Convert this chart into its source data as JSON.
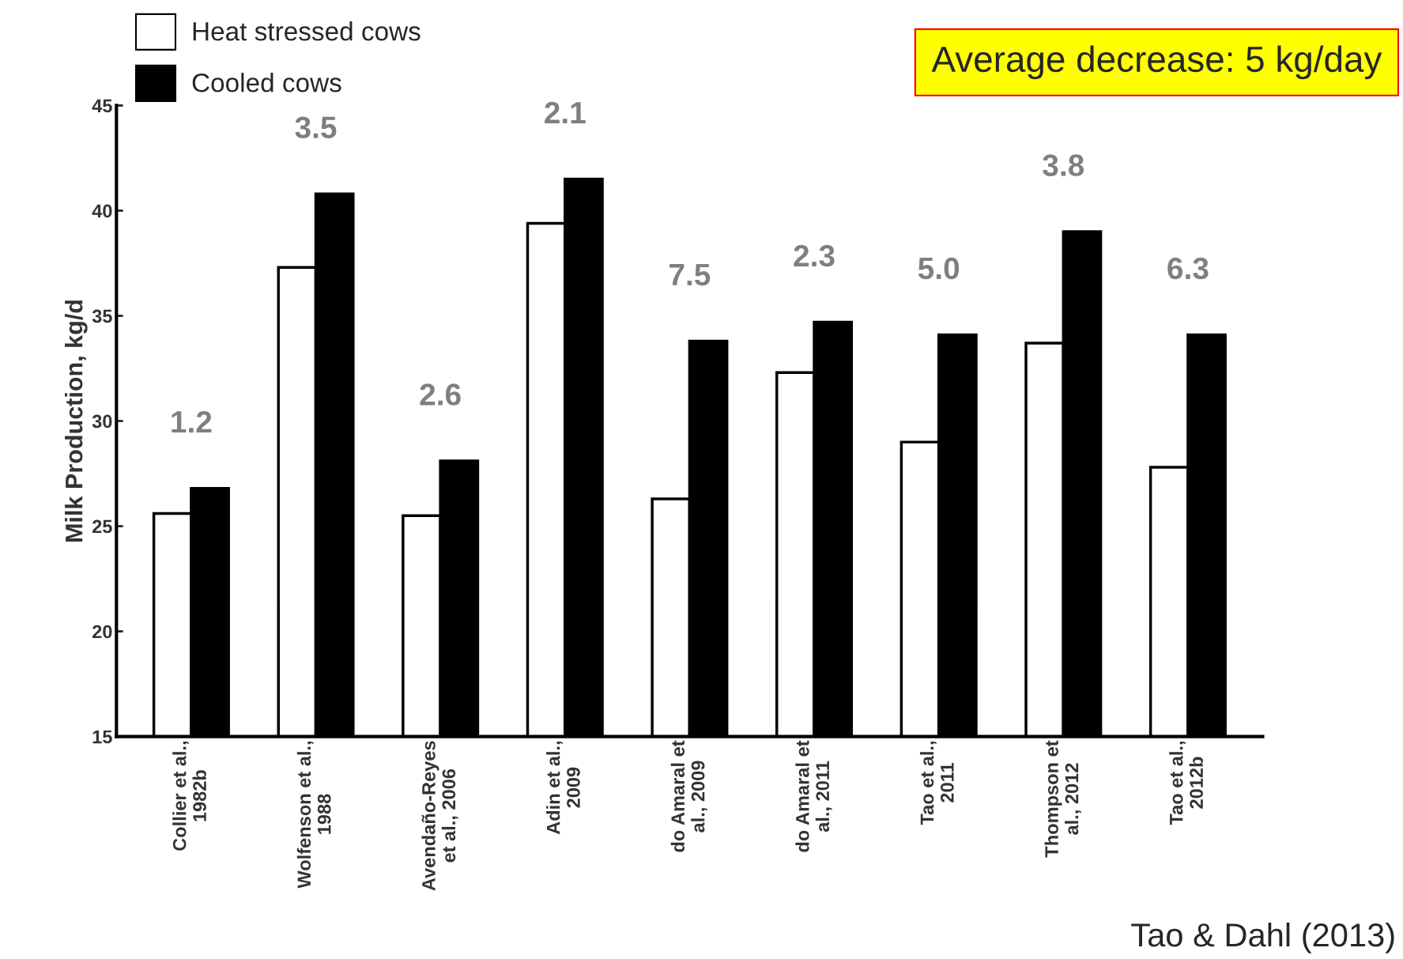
{
  "chart_data": {
    "type": "bar",
    "categories": [
      "Collier et al.,\n1982b",
      "Wolfenson et al.,\n1988",
      "Avendaño-Reyes\net al., 2006",
      "Adin et al.,\n2009",
      "do Amaral et\nal., 2009",
      "do Amaral et\nal., 2011",
      "Tao et al.,\n2011",
      "Thompson et\nal., 2012",
      "Tao et al.,\n2012b"
    ],
    "series": [
      {
        "name": "Heat stressed cows",
        "color": "#ffffff",
        "values": [
          25.6,
          37.3,
          25.5,
          39.4,
          26.3,
          32.3,
          29.0,
          33.7,
          27.8
        ]
      },
      {
        "name": "Cooled cows",
        "color": "#000000",
        "values": [
          26.8,
          40.8,
          28.1,
          41.5,
          33.8,
          34.7,
          34.1,
          39.0,
          34.1
        ]
      }
    ],
    "ylabel": "Milk Production, kg/d",
    "ylim": [
      15,
      45
    ],
    "yticks": [
      15,
      20,
      25,
      30,
      35,
      40,
      45
    ],
    "grid": false,
    "legend": "top left",
    "annotations": [
      "1.2",
      "3.5",
      "2.6",
      "2.1",
      "7.5",
      "2.3",
      "5.0",
      "3.8",
      "6.3",
      "Average decrease: 5 kg/day",
      "Tao & Dahl (2013)"
    ]
  }
}
